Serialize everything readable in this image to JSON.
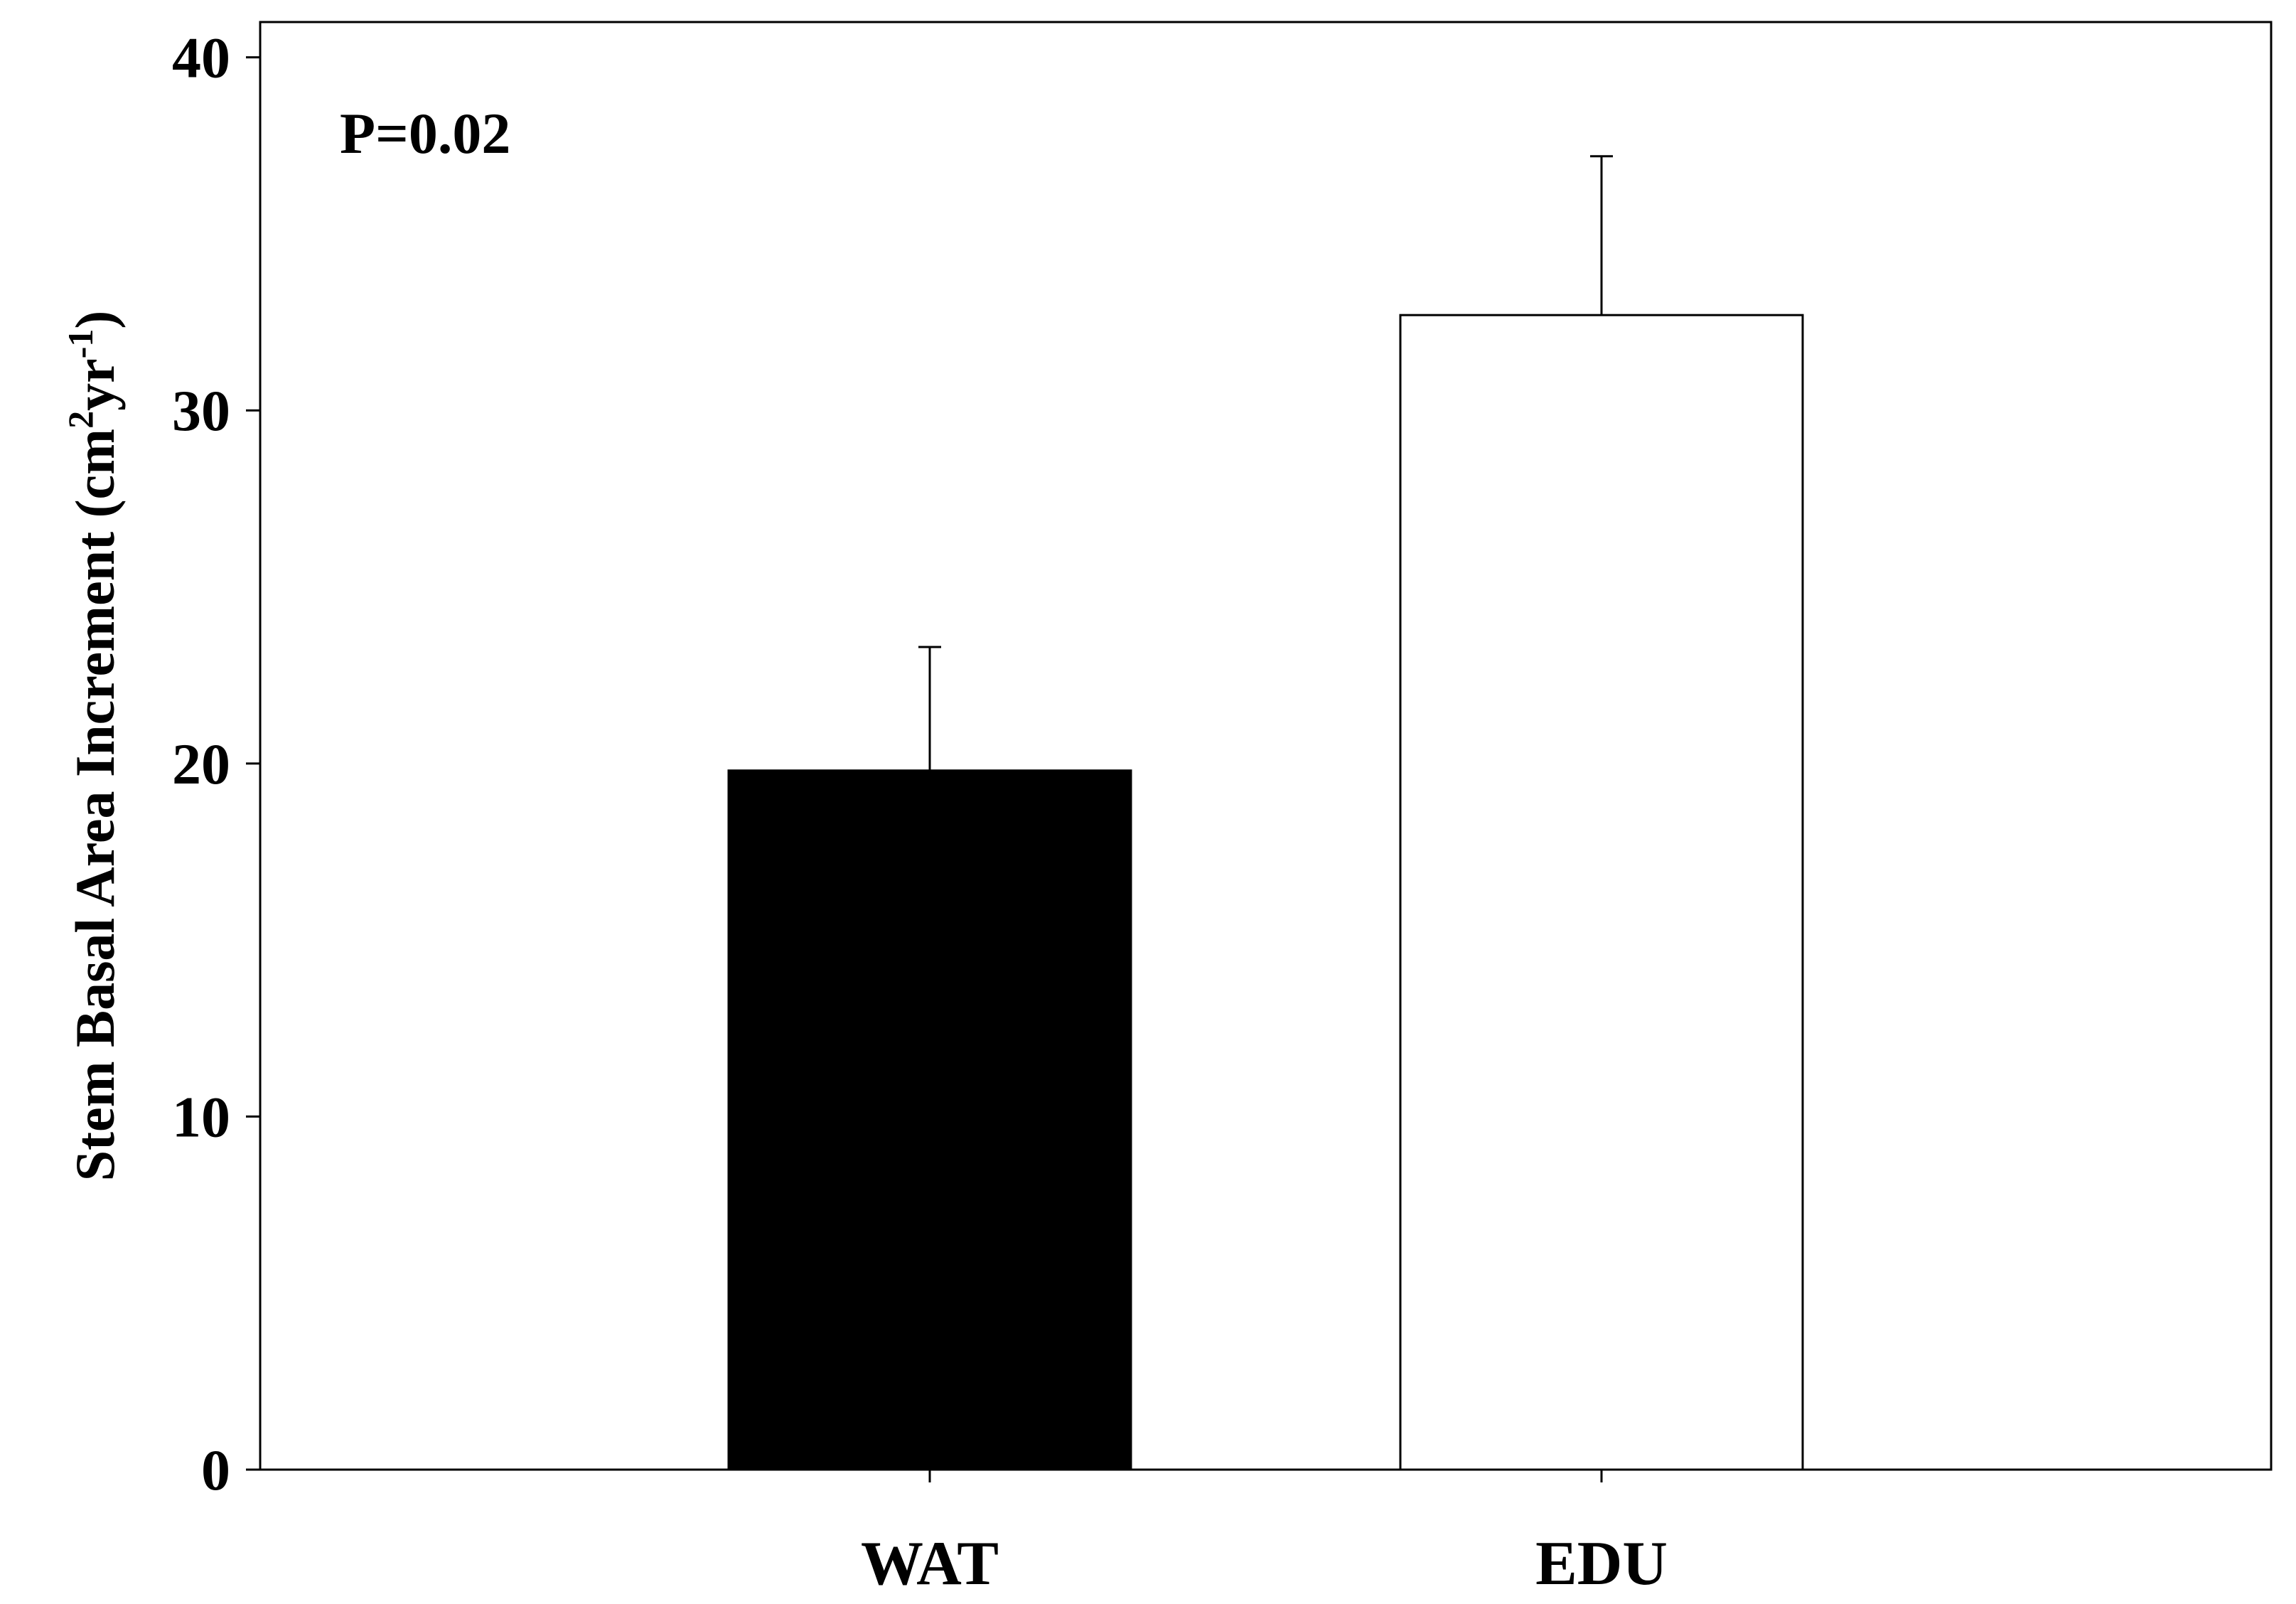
{
  "chart_data": {
    "type": "bar",
    "categories": [
      "WAT",
      "EDU"
    ],
    "values": [
      19.8,
      32.7
    ],
    "error_bars": [
      3.5,
      4.5
    ],
    "bar_colors": [
      "#000000",
      "#ffffff"
    ],
    "bar_edge_color": "#000000",
    "title": "",
    "xlabel": "",
    "ylabel": {
      "text": "Stem Basal Area Increment (cm",
      "sup1": "2",
      "mid": "yr",
      "sup2": "-1",
      "end": ")"
    },
    "ylim": [
      0,
      41
    ],
    "yticks": [
      0,
      10,
      20,
      30,
      40
    ],
    "annotation": "P=0.02",
    "grid": false,
    "legend": "none"
  }
}
